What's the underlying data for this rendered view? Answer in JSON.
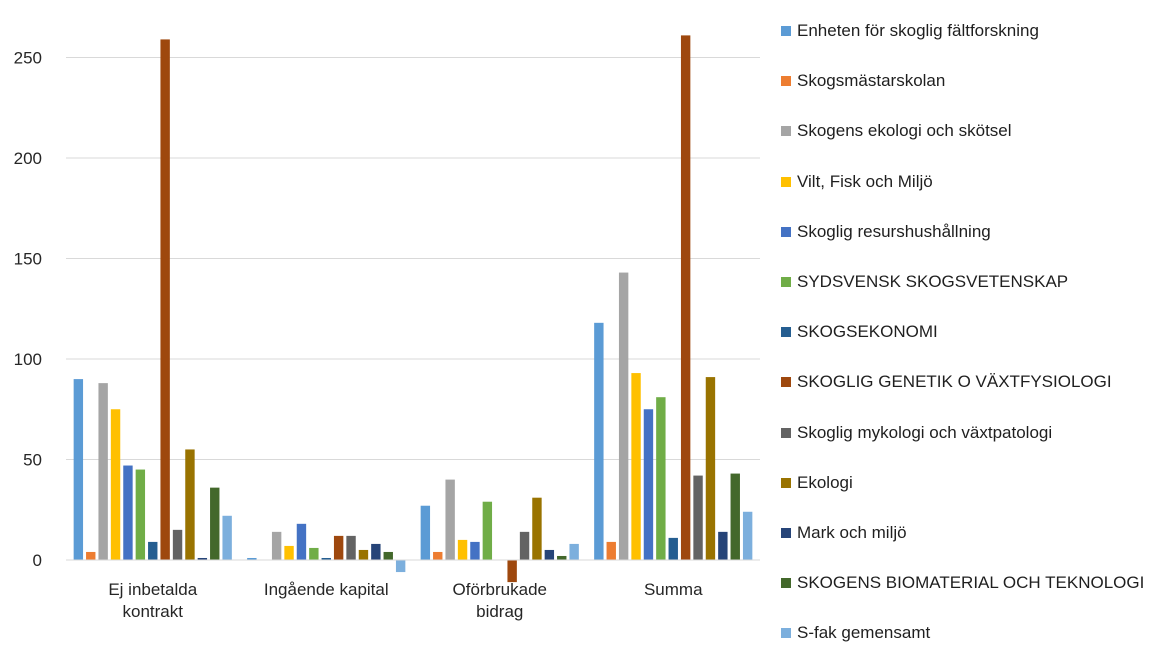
{
  "chart_data": {
    "type": "bar",
    "title": "",
    "xlabel": "",
    "ylabel": "",
    "ylim": [
      -10,
      265
    ],
    "yticks": [
      0,
      50,
      100,
      150,
      200,
      250
    ],
    "grid": true,
    "legend_position": "right",
    "categories": [
      "Ej inbetalda kontrakt",
      "Ingående kapital",
      "Oförbrukade bidrag",
      "Summa"
    ],
    "category_labels": [
      [
        "Ej inbetalda",
        "kontrakt"
      ],
      [
        "Ingående kapital"
      ],
      [
        "Oförbrukade",
        "bidrag"
      ],
      [
        "Summa"
      ]
    ],
    "series": [
      {
        "name": "Enheten för skoglig fältforskning",
        "color": "#5b9bd5",
        "values": [
          90,
          1,
          27,
          118
        ]
      },
      {
        "name": "Skogsmästarskolan",
        "color": "#ed7d31",
        "values": [
          4,
          0,
          4,
          9
        ]
      },
      {
        "name": "Skogens ekologi och skötsel",
        "color": "#a5a5a5",
        "values": [
          88,
          14,
          40,
          143
        ]
      },
      {
        "name": "Vilt, Fisk och Miljö",
        "color": "#ffc000",
        "values": [
          75,
          7,
          10,
          93
        ]
      },
      {
        "name": "Skoglig resurshushållning",
        "color": "#4472c4",
        "values": [
          47,
          18,
          9,
          75
        ]
      },
      {
        "name": "SYDSVENSK SKOGSVETENSKAP",
        "color": "#70ad47",
        "values": [
          45,
          6,
          29,
          81
        ]
      },
      {
        "name": "SKOGSEKONOMI",
        "color": "#255e91",
        "values": [
          9,
          1,
          0,
          11
        ]
      },
      {
        "name": "SKOGLIG GENETIK O VÄXTFYSIOLOGI",
        "color": "#9e480e",
        "values": [
          259,
          12,
          -11,
          261
        ]
      },
      {
        "name": "Skoglig mykologi och växtpatologi",
        "color": "#636363",
        "values": [
          15,
          12,
          14,
          42
        ]
      },
      {
        "name": "Ekologi",
        "color": "#997300",
        "values": [
          55,
          5,
          31,
          91
        ]
      },
      {
        "name": "Mark och miljö",
        "color": "#264478",
        "values": [
          1,
          8,
          5,
          14
        ]
      },
      {
        "name": "SKOGENS BIOMATERIAL OCH TEKNOLOGI",
        "color": "#43682b",
        "values": [
          36,
          4,
          2,
          43
        ]
      },
      {
        "name": "S-fak gemensamt",
        "color": "#7cafdd",
        "values": [
          22,
          -6,
          8,
          24
        ]
      }
    ]
  }
}
